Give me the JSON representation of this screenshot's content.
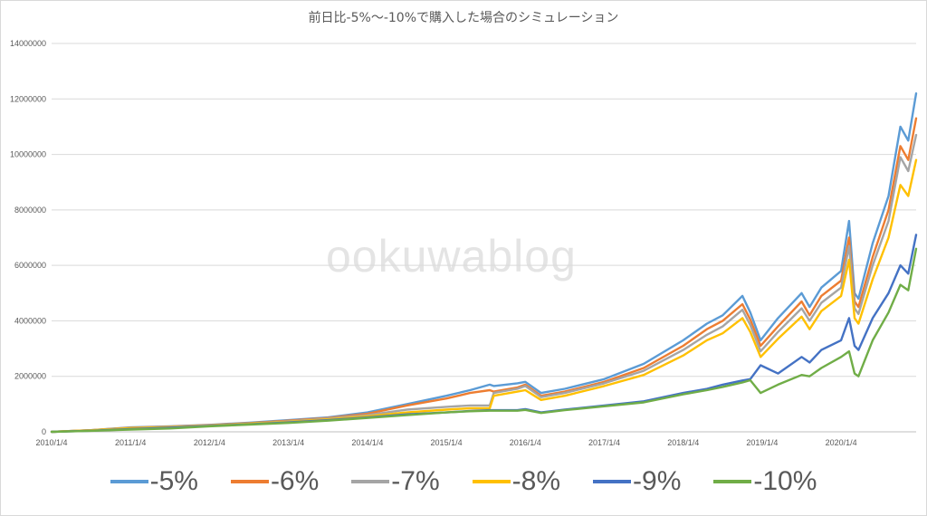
{
  "chart_data": {
    "type": "line",
    "title": "前日比-5%～-10%で購入した場合のシミュレーション",
    "watermark": "ookuwablog",
    "xlabel": "",
    "ylabel": "",
    "ylim": [
      0,
      14000000
    ],
    "yticks": [
      "0",
      "2000000",
      "4000000",
      "6000000",
      "8000000",
      "10000000",
      "12000000",
      "14000000"
    ],
    "xticks": [
      "2010/1/4",
      "2011/1/4",
      "2012/1/4",
      "2013/1/4",
      "2014/1/4",
      "2015/1/4",
      "2016/1/4",
      "2017/1/4",
      "2018/1/4",
      "2019/1/4",
      "2020/1/4"
    ],
    "xlim": [
      2010.0,
      2020.95
    ],
    "grid": "horizontal",
    "legend_position": "bottom",
    "x": [
      2010.0,
      2010.5,
      2011.0,
      2011.5,
      2012.0,
      2012.5,
      2013.0,
      2013.5,
      2014.0,
      2014.5,
      2015.0,
      2015.3,
      2015.55,
      2015.6,
      2015.9,
      2016.0,
      2016.2,
      2016.5,
      2017.0,
      2017.5,
      2018.0,
      2018.3,
      2018.5,
      2018.75,
      2018.85,
      2018.98,
      2019.2,
      2019.5,
      2019.6,
      2019.75,
      2020.0,
      2020.1,
      2020.17,
      2020.22,
      2020.4,
      2020.6,
      2020.75,
      2020.85,
      2020.95
    ],
    "series": [
      {
        "name": "-5%",
        "color": "#5b9bd5",
        "values": [
          0,
          60000,
          160000,
          200000,
          250000,
          330000,
          420000,
          520000,
          700000,
          1000000,
          1300000,
          1500000,
          1700000,
          1650000,
          1750000,
          1800000,
          1400000,
          1550000,
          1900000,
          2450000,
          3300000,
          3900000,
          4200000,
          4900000,
          4300000,
          3300000,
          4100000,
          5000000,
          4500000,
          5200000,
          5800000,
          7600000,
          5000000,
          4800000,
          6800000,
          8500000,
          11000000,
          10500000,
          12200000
        ]
      },
      {
        "name": "-6%",
        "color": "#ed7d31",
        "values": [
          0,
          60000,
          150000,
          190000,
          240000,
          310000,
          400000,
          500000,
          650000,
          950000,
          1200000,
          1400000,
          1500000,
          1450000,
          1600000,
          1700000,
          1300000,
          1450000,
          1800000,
          2300000,
          3100000,
          3700000,
          4000000,
          4600000,
          4050000,
          3100000,
          3800000,
          4700000,
          4200000,
          4900000,
          5450000,
          7000000,
          4700000,
          4500000,
          6300000,
          8000000,
          10300000,
          9800000,
          11300000
        ]
      },
      {
        "name": "-7%",
        "color": "#a5a5a5",
        "values": [
          0,
          55000,
          140000,
          180000,
          230000,
          300000,
          380000,
          480000,
          600000,
          800000,
          900000,
          950000,
          950000,
          1400000,
          1550000,
          1650000,
          1250000,
          1400000,
          1750000,
          2200000,
          2950000,
          3500000,
          3800000,
          4400000,
          3850000,
          2900000,
          3600000,
          4450000,
          4000000,
          4650000,
          5200000,
          6700000,
          4450000,
          4250000,
          6000000,
          7600000,
          9900000,
          9400000,
          10700000
        ]
      },
      {
        "name": "-8%",
        "color": "#ffc000",
        "values": [
          0,
          55000,
          130000,
          170000,
          220000,
          290000,
          360000,
          450000,
          560000,
          700000,
          800000,
          850000,
          850000,
          1300000,
          1450000,
          1500000,
          1150000,
          1300000,
          1650000,
          2050000,
          2750000,
          3300000,
          3550000,
          4100000,
          3600000,
          2700000,
          3350000,
          4150000,
          3700000,
          4350000,
          4900000,
          6200000,
          4100000,
          3900000,
          5500000,
          7000000,
          8900000,
          8500000,
          9800000
        ]
      },
      {
        "name": "-9%",
        "color": "#4472c4",
        "values": [
          0,
          40000,
          100000,
          150000,
          210000,
          270000,
          340000,
          420000,
          520000,
          630000,
          700000,
          750000,
          780000,
          780000,
          780000,
          820000,
          700000,
          800000,
          950000,
          1100000,
          1400000,
          1550000,
          1700000,
          1850000,
          1900000,
          2400000,
          2100000,
          2700000,
          2500000,
          2950000,
          3300000,
          4100000,
          3100000,
          2950000,
          4100000,
          5000000,
          6000000,
          5700000,
          7100000
        ]
      },
      {
        "name": "-10%",
        "color": "#70ad47",
        "values": [
          0,
          35000,
          80000,
          120000,
          200000,
          260000,
          320000,
          400000,
          500000,
          600000,
          700000,
          740000,
          760000,
          760000,
          760000,
          790000,
          680000,
          780000,
          920000,
          1060000,
          1350000,
          1500000,
          1620000,
          1780000,
          1860000,
          1400000,
          1700000,
          2050000,
          2000000,
          2300000,
          2700000,
          2900000,
          2100000,
          2000000,
          3300000,
          4300000,
          5300000,
          5100000,
          6600000
        ]
      }
    ]
  }
}
